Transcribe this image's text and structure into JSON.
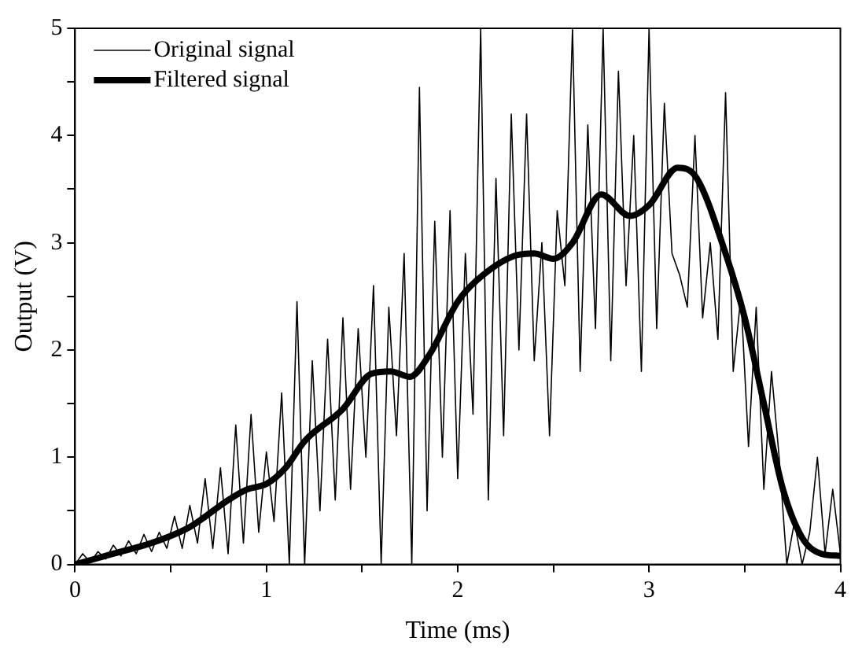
{
  "chart_data": {
    "type": "line",
    "xlabel": "Time (ms)",
    "ylabel": "Output (V)",
    "xlim": [
      0,
      4
    ],
    "xticks": [
      0,
      {
        "value": 0.5,
        "label": null
      },
      1,
      {
        "value": 1.5,
        "label": null
      },
      2,
      {
        "value": 2.5,
        "label": null
      },
      3,
      {
        "value": 3.5,
        "label": null
      },
      4
    ],
    "ylim": [
      0,
      5
    ],
    "yticks": [
      0,
      {
        "value": 0.5,
        "label": null
      },
      1,
      {
        "value": 1.5,
        "label": null
      },
      2,
      {
        "value": 2.5,
        "label": null
      },
      3,
      {
        "value": 3.5,
        "label": null
      },
      4,
      {
        "value": 4.5,
        "label": null
      },
      5
    ],
    "grid": false,
    "legend": "top left",
    "marker": "none",
    "series": [
      {
        "name": "Original signal",
        "color": "#000000",
        "line_style": "solid",
        "x": [
          0,
          0.04,
          0.08,
          0.12,
          0.16,
          0.2,
          0.24,
          0.28,
          0.32,
          0.36,
          0.4,
          0.44,
          0.48,
          0.52,
          0.56,
          0.6,
          0.64,
          0.68,
          0.72,
          0.76,
          0.8,
          0.84,
          0.88,
          0.92,
          0.96,
          1.0,
          1.04,
          1.08,
          1.12,
          1.16,
          1.2,
          1.24,
          1.28,
          1.32,
          1.36,
          1.4,
          1.44,
          1.48,
          1.52,
          1.56,
          1.6,
          1.64,
          1.68,
          1.72,
          1.76,
          1.8,
          1.84,
          1.88,
          1.92,
          1.96,
          2.0,
          2.04,
          2.08,
          2.12,
          2.16,
          2.2,
          2.24,
          2.28,
          2.32,
          2.36,
          2.4,
          2.44,
          2.48,
          2.52,
          2.56,
          2.6,
          2.64,
          2.68,
          2.72,
          2.76,
          2.8,
          2.84,
          2.88,
          2.92,
          2.96,
          3.0,
          3.04,
          3.08,
          3.12,
          3.16,
          3.2,
          3.24,
          3.28,
          3.32,
          3.36,
          3.4,
          3.44,
          3.48,
          3.52,
          3.56,
          3.6,
          3.64,
          3.68,
          3.72,
          3.76,
          3.8,
          3.84,
          3.88,
          3.92,
          3.96,
          4.0
        ],
        "values": [
          0,
          0.1,
          0.02,
          0.12,
          0.05,
          0.18,
          0.08,
          0.22,
          0.1,
          0.28,
          0.12,
          0.3,
          0.15,
          0.45,
          0.15,
          0.55,
          0.2,
          0.8,
          0.15,
          0.9,
          0.1,
          1.3,
          0.2,
          1.4,
          0.3,
          1.05,
          0.4,
          1.6,
          0,
          2.45,
          0,
          1.9,
          0.5,
          2.1,
          0.6,
          2.3,
          0.7,
          2.2,
          1.0,
          2.6,
          0,
          2.4,
          1.2,
          2.9,
          0,
          4.45,
          0.5,
          3.2,
          1.0,
          3.3,
          0.8,
          2.9,
          1.4,
          5,
          0.6,
          3.6,
          1.2,
          4.2,
          2.0,
          4.2,
          1.9,
          3.0,
          1.2,
          3.3,
          2.6,
          5,
          1.8,
          4.1,
          2.2,
          5,
          1.9,
          4.6,
          2.6,
          4.0,
          1.8,
          5,
          2.2,
          4.3,
          2.9,
          2.7,
          2.4,
          4.0,
          2.3,
          3.0,
          2.1,
          4.4,
          1.8,
          2.5,
          1.1,
          2.4,
          0.7,
          1.8,
          1.0,
          0,
          0.4,
          0,
          0.3,
          1.0,
          0.1,
          0.7,
          0.1
        ]
      },
      {
        "name": "Filtered signal",
        "color": "#000000",
        "line_style": "solid",
        "x": [
          0,
          0.2,
          0.4,
          0.6,
          0.8,
          0.9,
          1.0,
          1.1,
          1.2,
          1.4,
          1.55,
          1.65,
          1.75,
          1.85,
          2.0,
          2.1,
          2.3,
          2.4,
          2.5,
          2.6,
          2.75,
          2.9,
          3.0,
          3.15,
          3.25,
          3.4,
          3.5,
          3.6,
          3.7,
          3.8,
          3.9,
          4.0
        ],
        "values": [
          0,
          0.1,
          0.2,
          0.35,
          0.6,
          0.7,
          0.75,
          0.9,
          1.15,
          1.45,
          1.78,
          1.8,
          1.75,
          1.95,
          2.45,
          2.65,
          2.88,
          2.9,
          2.85,
          3.0,
          3.45,
          3.25,
          3.35,
          3.7,
          3.6,
          2.9,
          2.3,
          1.5,
          0.7,
          0.25,
          0.1,
          0.08
        ]
      }
    ]
  }
}
